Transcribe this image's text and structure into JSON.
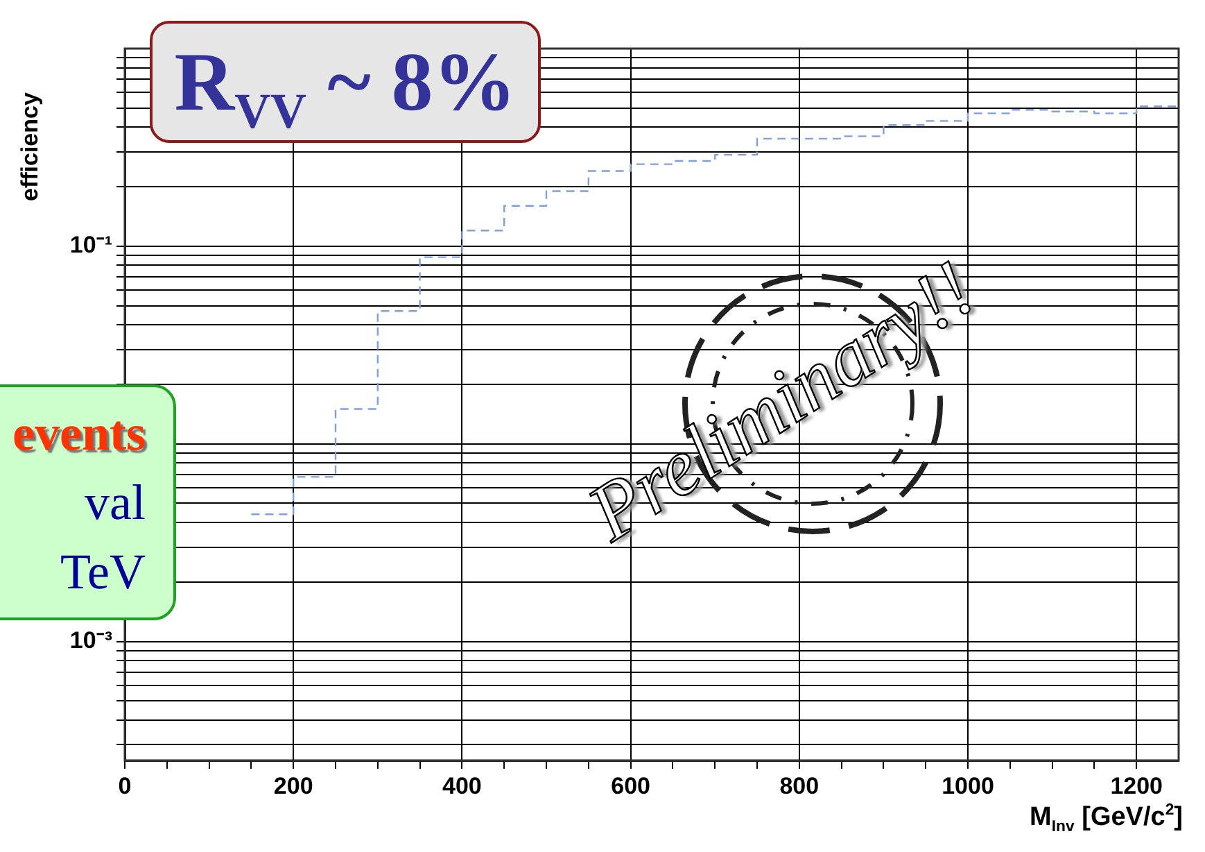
{
  "chart_data": {
    "type": "histogram",
    "xlabel": "M$_{Inv}$ [GeV/c$^{2}$]",
    "ylabel": "efficiency",
    "bins": [
      150,
      200,
      250,
      300,
      350,
      400,
      450,
      500,
      550,
      600,
      650,
      700,
      750,
      800,
      850,
      900,
      950,
      1000,
      1050,
      1100,
      1150,
      1200,
      1250
    ],
    "values": [
      0.0044,
      0.0068,
      0.015,
      0.047,
      0.088,
      0.12,
      0.16,
      0.19,
      0.24,
      0.26,
      0.27,
      0.29,
      0.35,
      0.35,
      0.36,
      0.41,
      0.43,
      0.47,
      0.49,
      0.48,
      0.47,
      0.51
    ],
    "color": "#7f9fdf",
    "line_style": "dashed",
    "log": "y",
    "grid": true,
    "xlim": [
      0,
      1250
    ],
    "ylim": [
      0.00025,
      1
    ],
    "xticks": [
      0,
      {
        "value": 50,
        "label": null
      },
      {
        "value": 100,
        "label": null
      },
      {
        "value": 150,
        "label": null
      },
      200,
      {
        "value": 250,
        "label": null
      },
      {
        "value": 300,
        "label": null
      },
      {
        "value": 350,
        "label": null
      },
      400,
      {
        "value": 450,
        "label": null
      },
      {
        "value": 500,
        "label": null
      },
      {
        "value": 550,
        "label": null
      },
      600,
      {
        "value": 650,
        "label": null
      },
      {
        "value": 700,
        "label": null
      },
      {
        "value": 750,
        "label": null
      },
      800,
      {
        "value": 850,
        "label": null
      },
      {
        "value": 900,
        "label": null
      },
      {
        "value": 950,
        "label": null
      },
      1000,
      {
        "value": 1050,
        "label": null
      },
      {
        "value": 1100,
        "label": null
      },
      {
        "value": 1150,
        "label": null
      },
      1200
    ],
    "yticks": [
      {
        "value": 0.0003,
        "label": null
      },
      {
        "value": 0.0004,
        "label": null
      },
      {
        "value": 0.0005,
        "label": null
      },
      {
        "value": 0.0006,
        "label": null
      },
      {
        "value": 0.0007,
        "label": null
      },
      {
        "value": 0.0008,
        "label": null
      },
      {
        "value": 0.0009,
        "label": null
      },
      {
        "value": 0.001,
        "label": "10⁻³"
      },
      {
        "value": 0.002,
        "label": null
      },
      {
        "value": 0.003,
        "label": null
      },
      {
        "value": 0.004,
        "label": null
      },
      {
        "value": 0.005,
        "label": null
      },
      {
        "value": 0.006,
        "label": null
      },
      {
        "value": 0.007,
        "label": null
      },
      {
        "value": 0.008,
        "label": null
      },
      {
        "value": 0.009,
        "label": null
      },
      {
        "value": 0.01,
        "label": null
      },
      {
        "value": 0.02,
        "label": null
      },
      {
        "value": 0.03,
        "label": null
      },
      {
        "value": 0.04,
        "label": null
      },
      {
        "value": 0.05,
        "label": null
      },
      {
        "value": 0.06,
        "label": null
      },
      {
        "value": 0.07,
        "label": null
      },
      {
        "value": 0.08,
        "label": null
      },
      {
        "value": 0.09,
        "label": null
      },
      {
        "value": 0.1,
        "label": "10⁻¹"
      },
      {
        "value": 0.2,
        "label": null
      },
      {
        "value": 0.3,
        "label": null
      },
      {
        "value": 0.4,
        "label": null
      },
      {
        "value": 0.5,
        "label": null
      },
      {
        "value": 0.6,
        "label": null
      },
      {
        "value": 0.7,
        "label": null
      },
      {
        "value": 0.8,
        "label": null
      },
      {
        "value": 0.9,
        "label": null
      }
    ],
    "annotations": [
      "R$_{VV}$ ~ 8%",
      "events",
      "val",
      "TeV",
      "Preliminary!!"
    ]
  }
}
